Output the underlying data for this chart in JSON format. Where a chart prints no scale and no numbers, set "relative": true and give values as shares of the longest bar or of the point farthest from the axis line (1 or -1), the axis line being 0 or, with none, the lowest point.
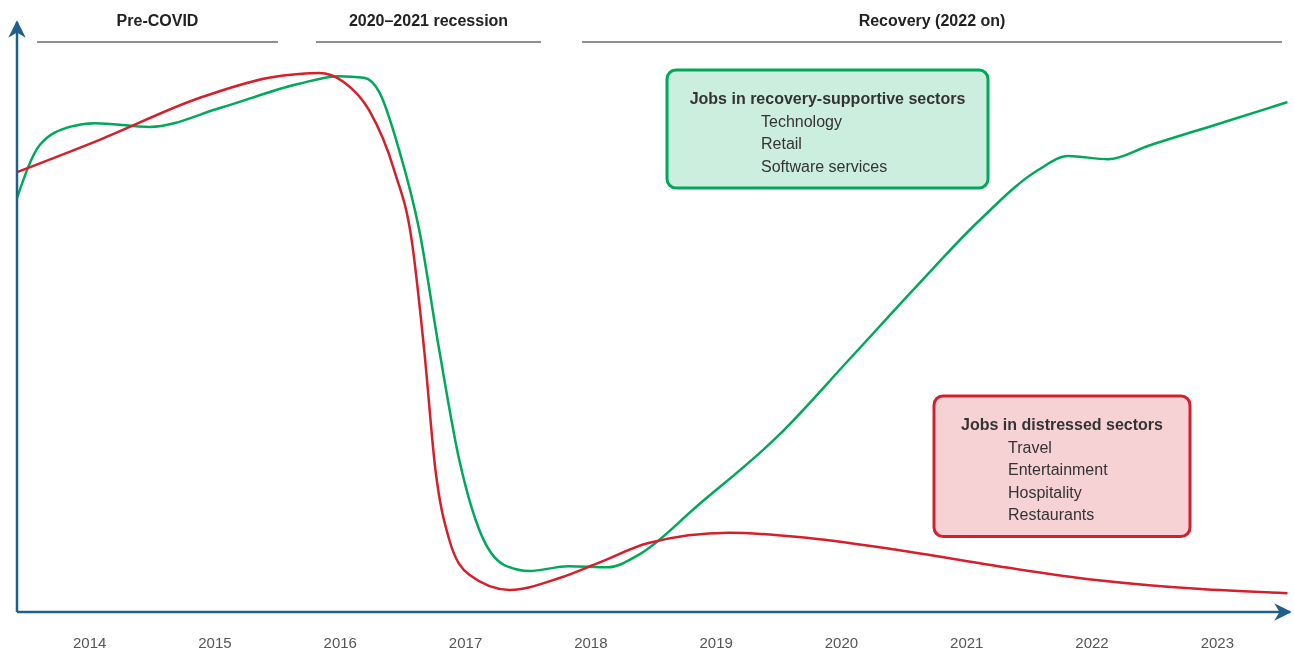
{
  "chart_data": {
    "type": "line",
    "relative": true,
    "tick_labels": "x",
    "legend": "right",
    "grid": false,
    "marker": "none",
    "line_style": "solid",
    "xlim": [
      2013.42,
      2023.58
    ],
    "xticks": [
      2014,
      2015,
      2016,
      2017,
      2018,
      2019,
      2020,
      2021,
      2022,
      2023
    ],
    "annotations": [
      "Pre-COVID",
      "2020–2021 recession",
      "Recovery (2022 on)"
    ],
    "series": [
      {
        "name": "Jobs in recovery-supportive sectors\nTechnology\nRetail\nSoftware services",
        "color": "#00a85a",
        "x": [
          2013.42,
          2013.6,
          2013.84,
          2014.04,
          2014.48,
          2015.04,
          2015.67,
          2015.99,
          2016.19,
          2016.31,
          2016.47,
          2016.63,
          2016.79,
          2016.95,
          2017.11,
          2017.31,
          2017.51,
          2017.82,
          2018.14,
          2018.38,
          2018.86,
          2019.5,
          2020.06,
          2020.61,
          2021.09,
          2021.57,
          2021.81,
          2022.13,
          2022.45,
          2023.0,
          2023.56
        ],
        "values": [
          0.768,
          0.866,
          0.9,
          0.907,
          0.9,
          0.935,
          0.98,
          0.994,
          0.991,
          0.965,
          0.857,
          0.709,
          0.486,
          0.282,
          0.152,
          0.087,
          0.076,
          0.085,
          0.083,
          0.106,
          0.199,
          0.328,
          0.468,
          0.607,
          0.724,
          0.82,
          0.846,
          0.84,
          0.865,
          0.905,
          0.946
        ]
      },
      {
        "name": "Jobs in distressed sectors\nTravel\nEntertainment\nHospitality\nRestaurants",
        "color": "#d4202c",
        "x": [
          2013.42,
          2014.08,
          2014.88,
          2015.43,
          2015.67,
          2015.83,
          2016.03,
          2016.23,
          2016.43,
          2016.57,
          2016.67,
          2016.76,
          2016.87,
          2017.03,
          2017.35,
          2017.75,
          2018.06,
          2018.46,
          2019.1,
          2019.66,
          2020.45,
          2021.25,
          2022.05,
          2022.84,
          2023.56
        ],
        "values": [
          0.816,
          0.876,
          0.954,
          0.991,
          0.998,
          1,
          0.983,
          0.931,
          0.82,
          0.69,
          0.486,
          0.263,
          0.134,
          0.069,
          0.041,
          0.063,
          0.091,
          0.128,
          0.147,
          0.139,
          0.115,
          0.085,
          0.059,
          0.043,
          0.035
        ]
      }
    ]
  }
}
